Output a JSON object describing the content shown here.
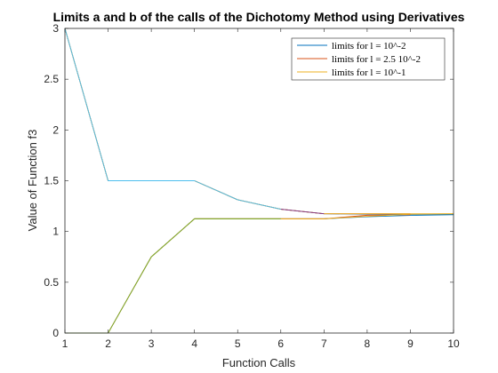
{
  "chart_data": {
    "type": "line",
    "title": "Limits a and b of the calls of the Dichotomy Method using Derivatives",
    "xlabel": "Function Calls",
    "ylabel": "Value of Function f3",
    "xlim": [
      1,
      10
    ],
    "ylim": [
      0,
      3
    ],
    "xticks": [
      "1",
      "2",
      "3",
      "4",
      "5",
      "6",
      "7",
      "8",
      "9",
      "10"
    ],
    "yticks": [
      "0",
      "0.5",
      "1",
      "1.5",
      "2",
      "2.5",
      "3"
    ],
    "grid": false,
    "legend_position": "top-right",
    "legend": [
      "limits for l = 10^-2",
      "limits for l = 2.5 10^-2",
      "limits for l = 10^-1"
    ],
    "series": [
      {
        "name": "limits for l = 10^-2",
        "color": "#0072BD",
        "upper": {
          "x": [
            1,
            2,
            3,
            4,
            5,
            6,
            7,
            8,
            9,
            10
          ],
          "y": [
            3,
            1.5,
            1.5,
            1.5,
            1.3125,
            1.22,
            1.175,
            1.17,
            1.168,
            1.168
          ]
        },
        "lower": {
          "x": [
            1,
            2,
            3,
            4,
            5,
            6,
            7,
            8,
            9,
            10
          ],
          "y": [
            0,
            0,
            0.75,
            1.125,
            1.125,
            1.125,
            1.125,
            1.145,
            1.158,
            1.165
          ]
        }
      },
      {
        "name": "limits for l = 2.5 10^-2",
        "color": "#D95319",
        "upper": {
          "x": [
            1,
            2,
            3,
            4,
            5,
            6,
            7,
            8,
            9
          ],
          "y": [
            3,
            1.5,
            1.5,
            1.5,
            1.3125,
            1.22,
            1.175,
            1.175,
            1.175
          ]
        },
        "lower": {
          "x": [
            1,
            2,
            3,
            4,
            5,
            6,
            7,
            8,
            9
          ],
          "y": [
            0,
            0,
            0.75,
            1.125,
            1.125,
            1.125,
            1.125,
            1.16,
            1.165
          ]
        }
      },
      {
        "name": "limits for l = 10^-1",
        "color": "#EDB120",
        "upper": {
          "x": [
            1,
            2,
            3,
            4,
            5,
            6,
            7,
            8,
            9,
            10
          ],
          "y": [
            3,
            1.5,
            1.5,
            1.5,
            1.3125,
            1.22,
            1.175,
            1.175,
            1.175,
            1.175
          ]
        },
        "lower": {
          "x": [
            1,
            2,
            3,
            4,
            5,
            6,
            7,
            8,
            9,
            10
          ],
          "y": [
            0,
            0,
            0.75,
            1.125,
            1.125,
            1.125,
            1.125,
            1.15,
            1.17,
            1.175
          ]
        }
      },
      {
        "name": "",
        "color": "#4DBEEE",
        "upper": {
          "x": [
            1,
            2,
            3,
            4,
            5,
            6
          ],
          "y": [
            3,
            1.5,
            1.5,
            1.5,
            1.3125,
            1.22
          ]
        },
        "lower": {
          "x": [],
          "y": []
        }
      },
      {
        "name": "",
        "color": "#7E2F8E",
        "upper": {
          "x": [
            6,
            7
          ],
          "y": [
            1.22,
            1.175
          ]
        },
        "lower": {
          "x": [],
          "y": []
        }
      },
      {
        "name": "",
        "color": "#77AC30",
        "upper": {
          "x": [],
          "y": []
        },
        "lower": {
          "x": [
            1,
            2,
            3,
            4,
            5,
            6
          ],
          "y": [
            0,
            0,
            0.75,
            1.125,
            1.125,
            1.125
          ]
        }
      }
    ]
  }
}
